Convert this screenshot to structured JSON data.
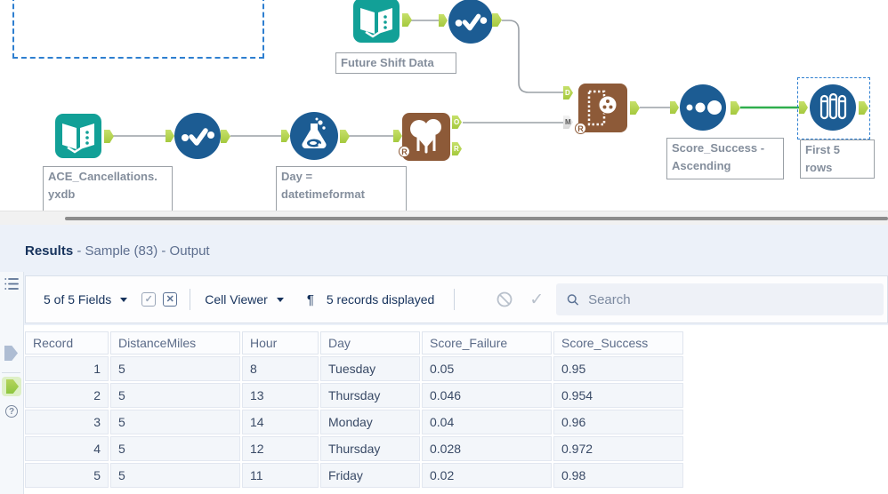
{
  "colors": {
    "teal": "#12a097",
    "blue": "#1c5c93",
    "brown": "#8d5a38",
    "anchor_green": "#b2d34f",
    "connection_green": "#2fae4d",
    "selection_blue": "#2e7fd0"
  },
  "canvas": {
    "labels": {
      "future_shift": "Future Shift Data",
      "ace_line1": "ACE_Cancellations.",
      "ace_line2": "yxdb",
      "formula_line1": "Day =",
      "formula_line2": "datetimeformat",
      "sort_line1": "Score_Success -",
      "sort_line2": "Ascending",
      "sample": "First 5 rows"
    },
    "anchors": {
      "forest_o": "O",
      "forest_r": "R",
      "score_d": "D",
      "score_m": "M",
      "r_badge": "R"
    }
  },
  "results": {
    "title": "Results",
    "subtitle": " - Sample (83) - Output",
    "toolbar": {
      "fields": "5 of 5 Fields",
      "cell_viewer": "Cell Viewer",
      "pilcrow": "¶",
      "records": "5 records displayed",
      "search_placeholder": "Search"
    },
    "table": {
      "columns": [
        "Record",
        "DistanceMiles",
        "Hour",
        "Day",
        "Score_Failure",
        "Score_Success"
      ],
      "rows": [
        [
          "1",
          "5",
          "8",
          "Tuesday",
          "0.05",
          "0.95"
        ],
        [
          "2",
          "5",
          "13",
          "Thursday",
          "0.046",
          "0.954"
        ],
        [
          "3",
          "5",
          "14",
          "Monday",
          "0.04",
          "0.96"
        ],
        [
          "4",
          "5",
          "12",
          "Thursday",
          "0.028",
          "0.972"
        ],
        [
          "5",
          "5",
          "11",
          "Friday",
          "0.02",
          "0.98"
        ]
      ]
    }
  }
}
